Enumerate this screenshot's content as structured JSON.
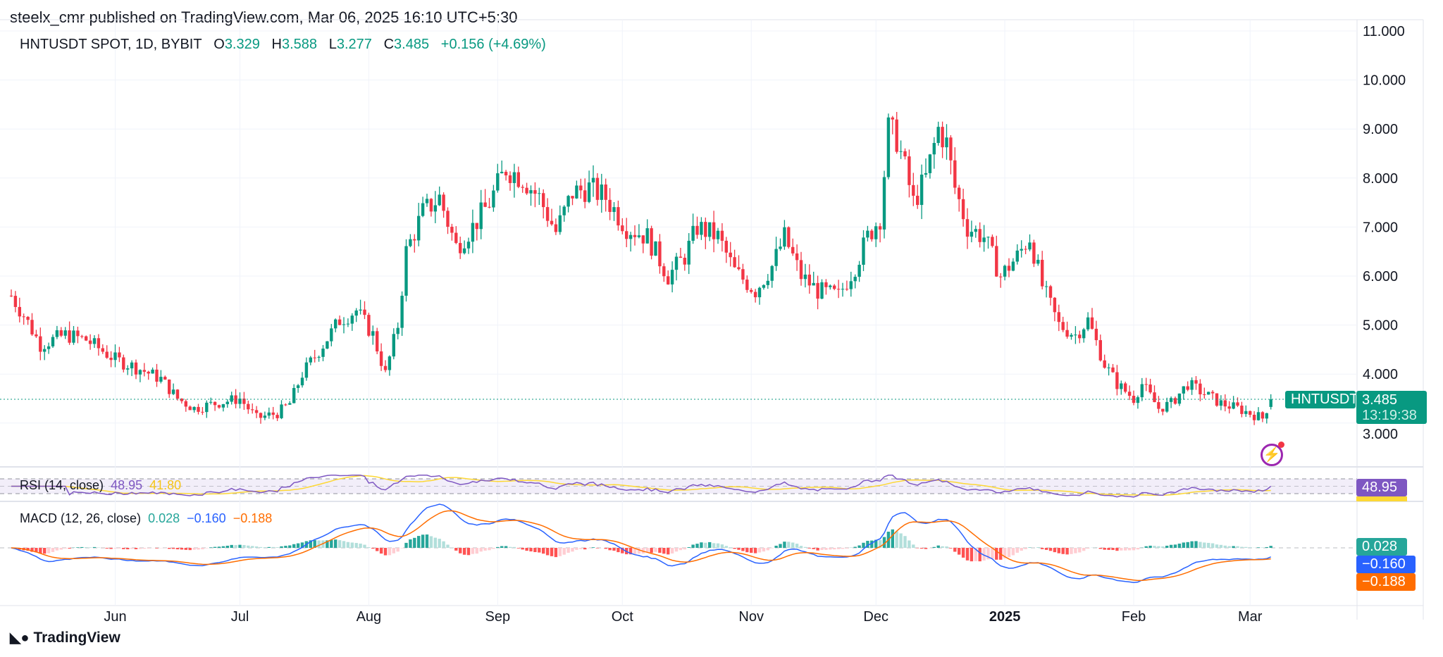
{
  "publish_line": "steelx_cmr published on TradingView.com, Mar 06, 2025 16:10 UTC+5:30",
  "legend": {
    "symbol": "HNTUSDT SPOT, 1D, BYBIT",
    "o_label": "O",
    "o": "3.329",
    "h_label": "H",
    "h": "3.588",
    "l_label": "L",
    "l": "3.277",
    "c_label": "C",
    "c": "3.485",
    "change": "+0.156 (+4.69%)"
  },
  "rsi": {
    "label": "RSI (14, close)",
    "value": "48.95",
    "ma": "41.80",
    "color": "#7e57c2",
    "ma_color": "#fdd835"
  },
  "macd": {
    "label": "MACD (12, 26, close)",
    "hist": "0.028",
    "macd": "−0.160",
    "signal": "−0.188",
    "hist_color": "#26a69a",
    "macd_color": "#2962ff",
    "signal_color": "#ff6d00"
  },
  "price_tag": {
    "symbol": "HNTUSDT",
    "price": "3.485",
    "countdown": "13:19:38",
    "color": "#089981"
  },
  "logo": "TradingView",
  "icons": {
    "alert": "lightning-icon"
  },
  "chart_data": {
    "type": "candlestick",
    "title": "HNTUSDT SPOT, 1D, BYBIT",
    "ylim": [
      2.5,
      11.2
    ],
    "y_ticks": [
      "11.000",
      "10.000",
      "9.000",
      "8.000",
      "7.000",
      "6.000",
      "5.000",
      "4.000",
      "3.000"
    ],
    "x_ticks": [
      "Jun",
      "Jul",
      "Aug",
      "Sep",
      "Oct",
      "Nov",
      "Dec",
      "2025",
      "Feb",
      "Mar"
    ],
    "up_color": "#089981",
    "down_color": "#f23645",
    "approx_closes": [
      [
        "2024-05-07",
        5.6
      ],
      [
        "2024-05-10",
        5.2
      ],
      [
        "2024-05-14",
        4.6
      ],
      [
        "2024-05-20",
        4.8
      ],
      [
        "2024-05-25",
        4.7
      ],
      [
        "2024-06-01",
        4.3
      ],
      [
        "2024-06-07",
        4.1
      ],
      [
        "2024-06-12",
        3.9
      ],
      [
        "2024-06-16",
        3.5
      ],
      [
        "2024-06-20",
        3.3
      ],
      [
        "2024-06-25",
        3.4
      ],
      [
        "2024-07-01",
        3.5
      ],
      [
        "2024-07-05",
        3.1
      ],
      [
        "2024-07-10",
        3.2
      ],
      [
        "2024-07-13",
        3.4
      ],
      [
        "2024-07-16",
        4.0
      ],
      [
        "2024-07-21",
        4.6
      ],
      [
        "2024-07-25",
        5.1
      ],
      [
        "2024-07-29",
        5.3
      ],
      [
        "2024-08-02",
        4.8
      ],
      [
        "2024-08-05",
        4.0
      ],
      [
        "2024-08-08",
        5.0
      ],
      [
        "2024-08-10",
        6.5
      ],
      [
        "2024-08-14",
        7.3
      ],
      [
        "2024-08-18",
        7.6
      ],
      [
        "2024-08-22",
        6.6
      ],
      [
        "2024-08-26",
        7.0
      ],
      [
        "2024-08-30",
        7.5
      ],
      [
        "2024-09-03",
        8.2
      ],
      [
        "2024-09-07",
        8.0
      ],
      [
        "2024-09-11",
        7.6
      ],
      [
        "2024-09-15",
        6.9
      ],
      [
        "2024-09-19",
        7.7
      ],
      [
        "2024-09-23",
        7.8
      ],
      [
        "2024-09-27",
        7.6
      ],
      [
        "2024-10-02",
        7.0
      ],
      [
        "2024-10-07",
        6.8
      ],
      [
        "2024-10-12",
        6.0
      ],
      [
        "2024-10-16",
        6.4
      ],
      [
        "2024-10-19",
        7.0
      ],
      [
        "2024-10-24",
        6.8
      ],
      [
        "2024-10-28",
        6.1
      ],
      [
        "2024-11-02",
        5.7
      ],
      [
        "2024-11-06",
        6.2
      ],
      [
        "2024-11-09",
        6.8
      ],
      [
        "2024-11-13",
        6.0
      ],
      [
        "2024-11-17",
        5.7
      ],
      [
        "2024-11-22",
        5.6
      ],
      [
        "2024-11-26",
        6.2
      ],
      [
        "2024-11-29",
        6.8
      ],
      [
        "2024-12-02",
        7.2
      ],
      [
        "2024-12-04",
        9.0
      ],
      [
        "2024-12-06",
        8.8
      ],
      [
        "2024-12-08",
        8.2
      ],
      [
        "2024-12-10",
        7.5
      ],
      [
        "2024-12-13",
        8.0
      ],
      [
        "2024-12-16",
        9.0
      ],
      [
        "2024-12-18",
        8.7
      ],
      [
        "2024-12-20",
        7.8
      ],
      [
        "2024-12-23",
        7.0
      ],
      [
        "2024-12-27",
        6.8
      ],
      [
        "2024-12-31",
        6.0
      ],
      [
        "2025-01-04",
        6.4
      ],
      [
        "2025-01-07",
        6.8
      ],
      [
        "2025-01-10",
        5.8
      ],
      [
        "2025-01-14",
        5.0
      ],
      [
        "2025-01-18",
        4.8
      ],
      [
        "2025-01-21",
        5.1
      ],
      [
        "2025-01-25",
        4.2
      ],
      [
        "2025-01-28",
        3.8
      ],
      [
        "2025-02-01",
        3.5
      ],
      [
        "2025-02-03",
        3.8
      ],
      [
        "2025-02-07",
        3.3
      ],
      [
        "2025-02-10",
        3.4
      ],
      [
        "2025-02-14",
        3.8
      ],
      [
        "2025-02-18",
        3.6
      ],
      [
        "2025-02-22",
        3.4
      ],
      [
        "2025-02-26",
        3.3
      ],
      [
        "2025-03-01",
        3.2
      ],
      [
        "2025-03-04",
        3.1
      ],
      [
        "2025-03-06",
        3.485
      ]
    ],
    "last": {
      "open": 3.329,
      "high": 3.588,
      "low": 3.277,
      "close": 3.485
    }
  }
}
